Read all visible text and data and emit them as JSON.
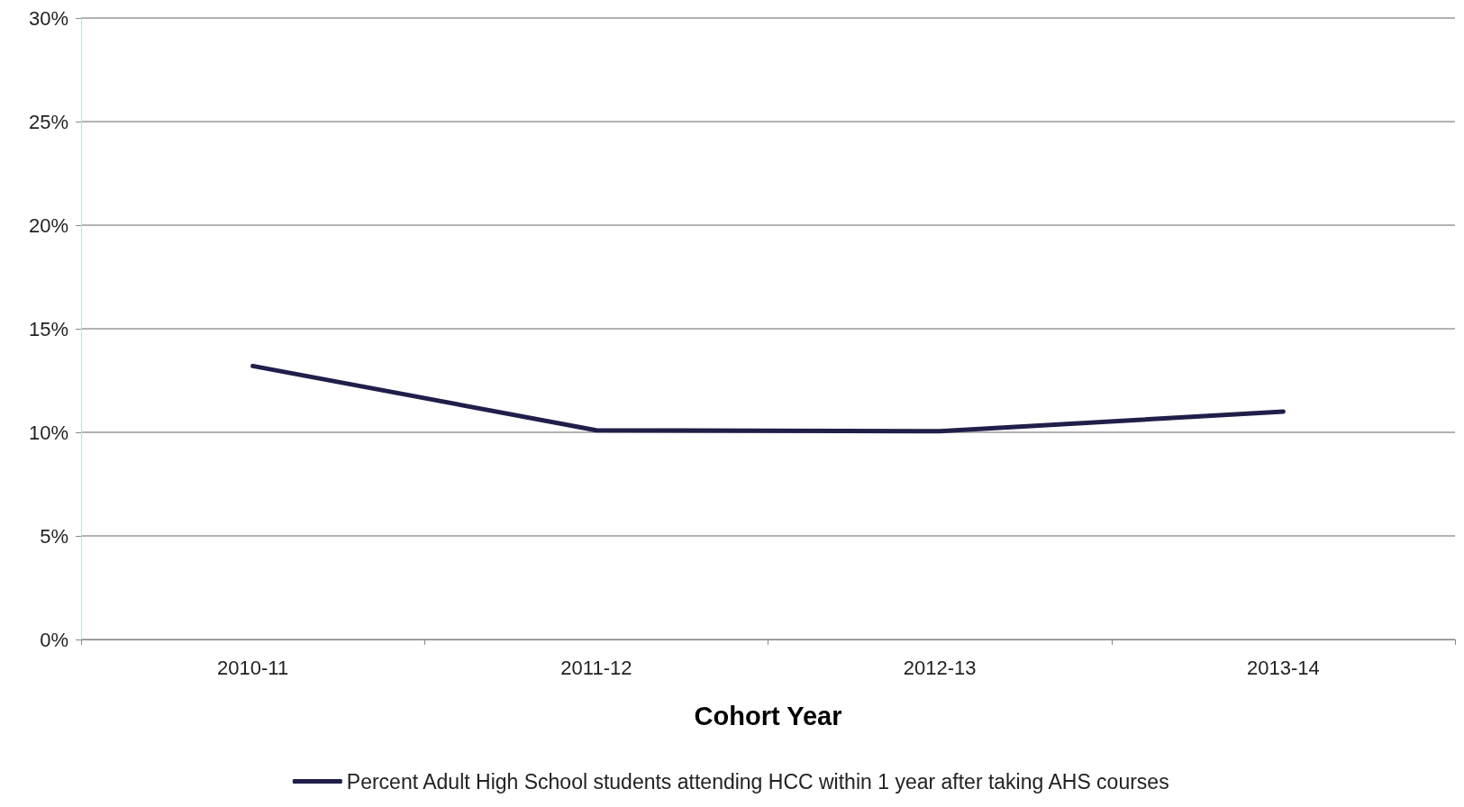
{
  "chart_data": {
    "type": "line",
    "xlabel": "Cohort Year",
    "categories": [
      "2010-11",
      "2011-12",
      "2012-13",
      "2013-14"
    ],
    "series": [
      {
        "name": "Percent Adult High School students attending HCC within 1 year after taking AHS courses",
        "color": "#1f1f4a",
        "values": [
          13.2,
          10.1,
          10.05,
          11.0
        ]
      }
    ],
    "ylim": [
      0,
      30
    ],
    "yticks": [
      {
        "value": 0,
        "label": "0%"
      },
      {
        "value": 5,
        "label": "5%"
      },
      {
        "value": 10,
        "label": "10%"
      },
      {
        "value": 15,
        "label": "15%"
      },
      {
        "value": 20,
        "label": "20%"
      },
      {
        "value": 25,
        "label": "25%"
      },
      {
        "value": 30,
        "label": "30%"
      }
    ],
    "grid": "y",
    "legend": "bottom",
    "marker": "none",
    "line_style": "solid"
  }
}
